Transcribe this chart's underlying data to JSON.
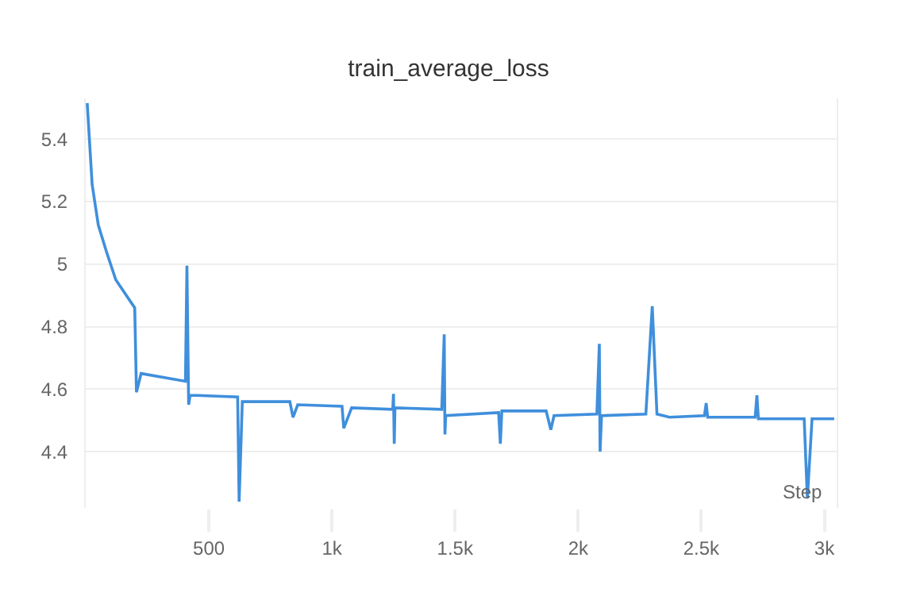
{
  "chart_data": {
    "type": "line",
    "title": "train_average_loss",
    "xlabel": "Step",
    "x": [
      6,
      26,
      51,
      84,
      122,
      199,
      206,
      225,
      405,
      411,
      418,
      424,
      450,
      617,
      623,
      636,
      829,
      842,
      861,
      1041,
      1048,
      1080,
      1247,
      1250,
      1253,
      1256,
      1446,
      1456,
      1459,
      1462,
      1677,
      1684,
      1690,
      1870,
      1889,
      1902,
      2076,
      2086,
      2089,
      2095,
      2275,
      2301,
      2320,
      2371,
      2513,
      2520,
      2526,
      2719,
      2726,
      2732,
      2918,
      2931,
      2950,
      3040
    ],
    "series": [
      {
        "color": "#3f8fdc",
        "values": [
          5.515,
          5.255,
          5.125,
          5.04,
          4.95,
          4.86,
          4.59,
          4.65,
          4.625,
          4.995,
          4.55,
          4.58,
          4.58,
          4.575,
          4.24,
          4.56,
          4.56,
          4.51,
          4.55,
          4.545,
          4.475,
          4.54,
          4.535,
          4.585,
          4.425,
          4.54,
          4.535,
          4.775,
          4.455,
          4.515,
          4.525,
          4.425,
          4.53,
          4.53,
          4.47,
          4.515,
          4.52,
          4.745,
          4.4,
          4.515,
          4.52,
          4.865,
          4.52,
          4.51,
          4.515,
          4.555,
          4.51,
          4.51,
          4.58,
          4.505,
          4.505,
          4.25,
          4.505,
          4.505
        ]
      }
    ],
    "xlim": [
      0,
      3050
    ],
    "xticks": [
      {
        "value": 500,
        "label": "500"
      },
      {
        "value": 1000,
        "label": "1k"
      },
      {
        "value": 1500,
        "label": "1.5k"
      },
      {
        "value": 2000,
        "label": "2k"
      },
      {
        "value": 2500,
        "label": "2.5k"
      },
      {
        "value": 3000,
        "label": "3k"
      }
    ],
    "ylim": [
      4.22,
      5.53
    ],
    "yticks": [
      4.4,
      4.6,
      4.8,
      5,
      5.2,
      5.4
    ],
    "grid": "y",
    "marker": "none",
    "line_style": "solid"
  }
}
